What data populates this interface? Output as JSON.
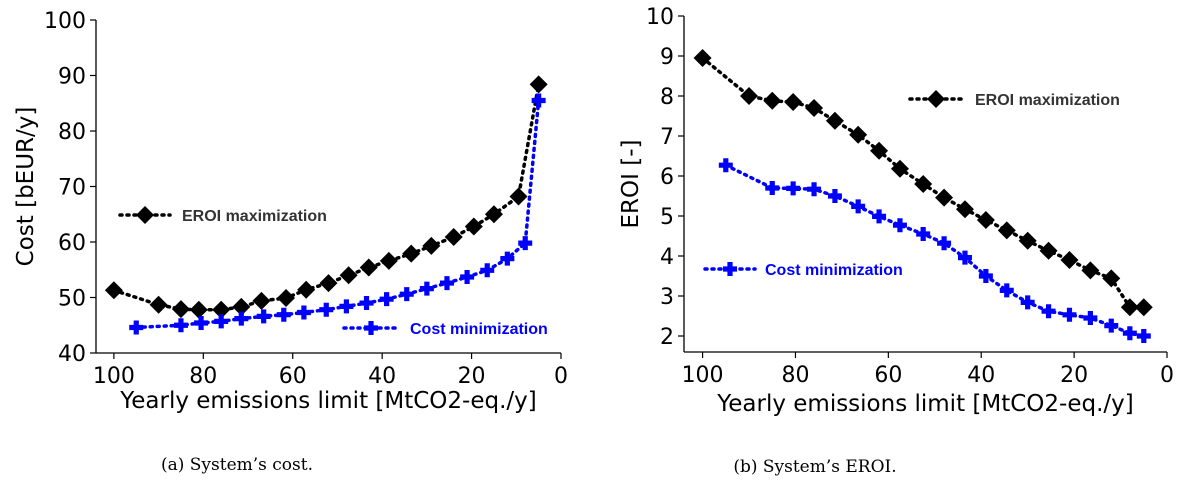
{
  "colors": {
    "eroi_max": "#000000",
    "cost_min": "#0000ff"
  },
  "chart_data": [
    {
      "type": "line",
      "xlabel": "Yearly emissions limit [MtCO2-eq./y]",
      "ylabel": "Cost [bEUR/y]",
      "caption": "(a) System’s cost.",
      "xlim": [
        104,
        0
      ],
      "ylim": [
        40,
        100
      ],
      "xticks": [
        100,
        80,
        60,
        40,
        20,
        0
      ],
      "yticks": [
        40,
        50,
        60,
        70,
        80,
        90,
        100
      ],
      "legend_position": "left",
      "series": [
        {
          "name": "EROI maximization",
          "marker": "diamond",
          "color": "#000000",
          "x": [
            100,
            90,
            85,
            81,
            76,
            71.5,
            67,
            61.5,
            57,
            52,
            47.5,
            43,
            38.5,
            33.5,
            29,
            24,
            19.5,
            15,
            9.5,
            5
          ],
          "y": [
            51.3,
            48.7,
            47.9,
            47.8,
            47.8,
            48.3,
            49.4,
            49.9,
            51.4,
            52.6,
            54.0,
            55.4,
            56.6,
            57.9,
            59.3,
            60.9,
            62.8,
            65.0,
            68.2,
            88.4
          ]
        },
        {
          "name": "Cost minimization",
          "marker": "plus",
          "color": "#0000ff",
          "x": [
            95,
            85,
            80.5,
            76,
            71.5,
            66.5,
            62,
            57.5,
            52.5,
            48,
            43.5,
            39,
            34.5,
            30,
            25.5,
            21,
            16.5,
            12,
            8,
            5
          ],
          "y": [
            44.6,
            45.0,
            45.4,
            45.7,
            46.2,
            46.6,
            46.9,
            47.3,
            47.8,
            48.4,
            49.0,
            49.7,
            50.6,
            51.6,
            52.6,
            53.7,
            54.9,
            57.0,
            59.8,
            85.5
          ]
        }
      ]
    },
    {
      "type": "line",
      "xlabel": "Yearly emissions limit [MtCO2-eq./y]",
      "ylabel": "EROI [-]",
      "caption": "(b) System’s EROI.",
      "xlim": [
        104,
        0
      ],
      "ylim": [
        1.6,
        10
      ],
      "xticks": [
        100,
        80,
        60,
        40,
        20,
        0
      ],
      "yticks": [
        2,
        3,
        4,
        5,
        6,
        7,
        8,
        9,
        10
      ],
      "legend_position": "varies",
      "series": [
        {
          "name": "EROI maximization",
          "marker": "diamond",
          "color": "#000000",
          "x": [
            100,
            90,
            85,
            80.5,
            76,
            71.5,
            66.5,
            62,
            57.5,
            52.5,
            48,
            43.5,
            39,
            34.5,
            30,
            25.5,
            21,
            16.5,
            12,
            8,
            5
          ],
          "y": [
            8.95,
            8.0,
            7.88,
            7.85,
            7.7,
            7.38,
            7.03,
            6.63,
            6.18,
            5.8,
            5.46,
            5.17,
            4.9,
            4.64,
            4.38,
            4.13,
            3.9,
            3.64,
            3.44,
            2.72,
            2.72
          ]
        },
        {
          "name": "Cost minimization",
          "marker": "plus",
          "color": "#0000ff",
          "x": [
            95,
            85,
            80.5,
            76,
            71.5,
            66.5,
            62,
            57.5,
            52.5,
            48,
            43.5,
            39,
            34.5,
            30,
            25.5,
            21,
            16.5,
            12,
            8,
            5
          ],
          "y": [
            6.27,
            5.7,
            5.69,
            5.67,
            5.5,
            5.24,
            4.99,
            4.77,
            4.55,
            4.32,
            3.96,
            3.5,
            3.14,
            2.84,
            2.62,
            2.53,
            2.45,
            2.26,
            2.07,
            2.0
          ]
        }
      ]
    }
  ]
}
